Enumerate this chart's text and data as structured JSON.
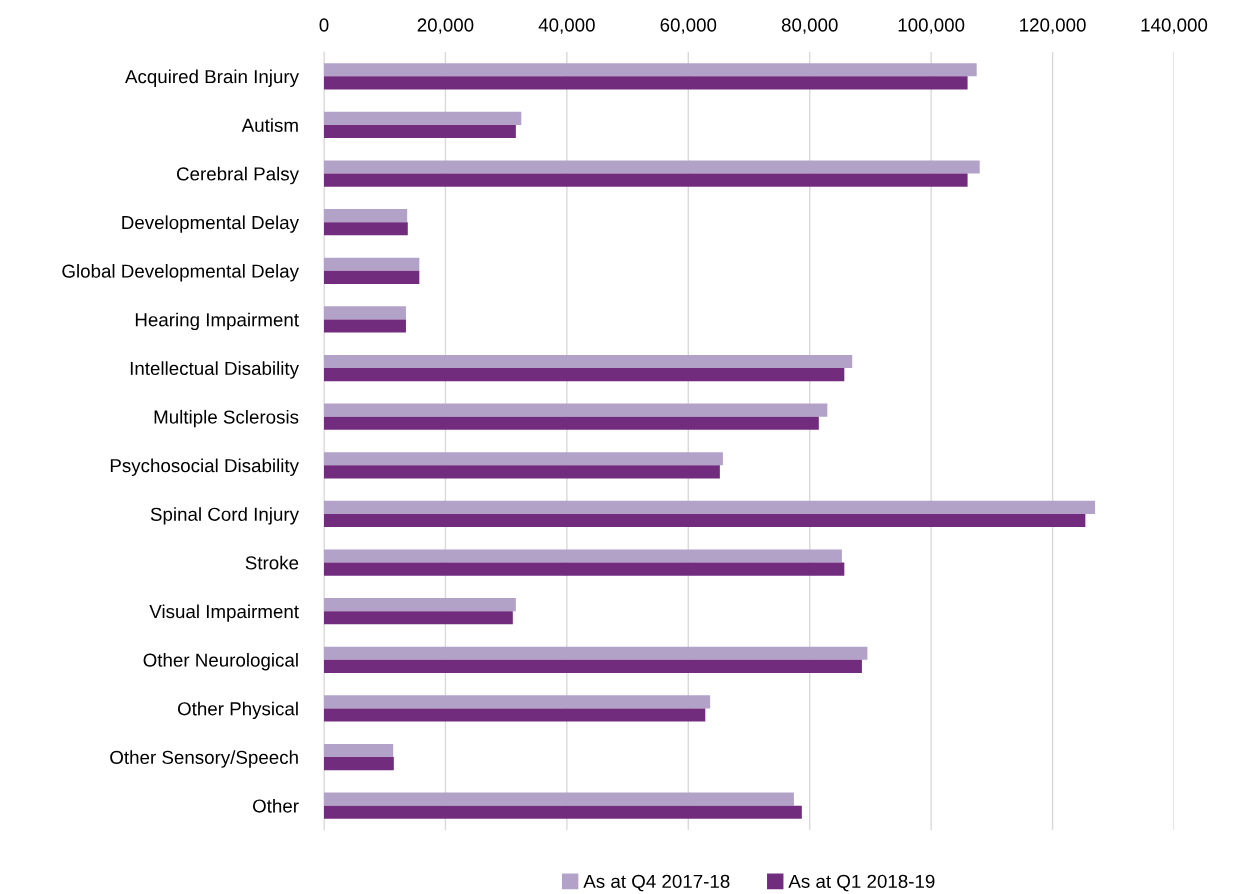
{
  "chart_data": {
    "type": "bar",
    "orientation": "horizontal",
    "categories": [
      "Acquired Brain Injury",
      "Autism",
      "Cerebral Palsy",
      "Developmental Delay",
      "Global Developmental Delay",
      "Hearing Impairment",
      "Intellectual Disability",
      "Multiple Sclerosis",
      "Psychosocial Disability",
      "Spinal Cord Injury",
      "Stroke",
      "Visual Impairment",
      "Other Neurological",
      "Other Physical",
      "Other Sensory/Speech",
      "Other"
    ],
    "series": [
      {
        "name": "As at Q4 2017-18",
        "color": "#b3a2c7",
        "values": [
          107500,
          32500,
          108000,
          13700,
          15700,
          13500,
          87000,
          82900,
          65700,
          127000,
          85300,
          31600,
          89500,
          63600,
          11400,
          77400
        ]
      },
      {
        "name": "As at Q1 2018-19",
        "color": "#722c7e",
        "values": [
          106000,
          31600,
          106000,
          13800,
          15700,
          13500,
          85700,
          81500,
          65200,
          125400,
          85700,
          31100,
          88600,
          62800,
          11500,
          78700
        ]
      }
    ],
    "xlim": [
      0,
      140000
    ],
    "xticks": [
      {
        "value": 0,
        "label": "0"
      },
      {
        "value": 20000,
        "label": "20,000"
      },
      {
        "value": 40000,
        "label": "40,000"
      },
      {
        "value": 60000,
        "label": "60,000"
      },
      {
        "value": 80000,
        "label": "80,000"
      },
      {
        "value": 100000,
        "label": "100,000"
      },
      {
        "value": 120000,
        "label": "120,000"
      },
      {
        "value": 140000,
        "label": "140,000"
      }
    ],
    "grid": "x",
    "legend": "bottom"
  }
}
